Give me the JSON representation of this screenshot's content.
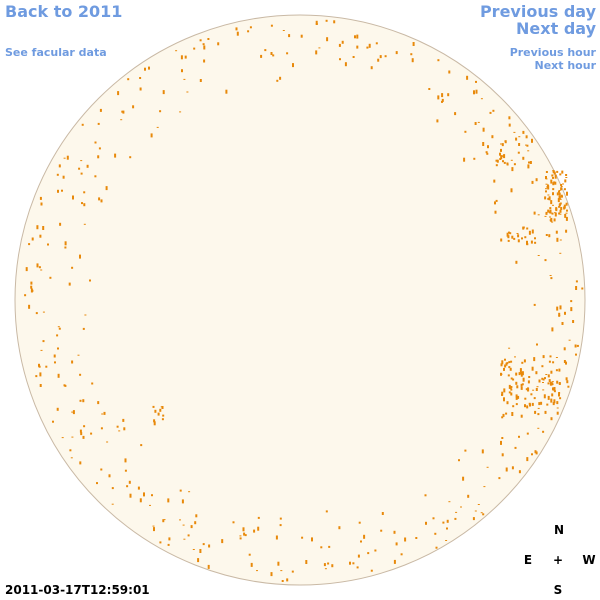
{
  "nav": {
    "back": "Back to 2011",
    "facular": "See facular data",
    "previous_day": "Previous day",
    "next_day": "Next day",
    "previous_hour": "Previous hour",
    "next_hour": "Next hour"
  },
  "timestamp": "2011-03-17T12:59:01",
  "compass": {
    "north": "N",
    "east": "E",
    "center": "+",
    "west": "W",
    "south": "S"
  }
}
